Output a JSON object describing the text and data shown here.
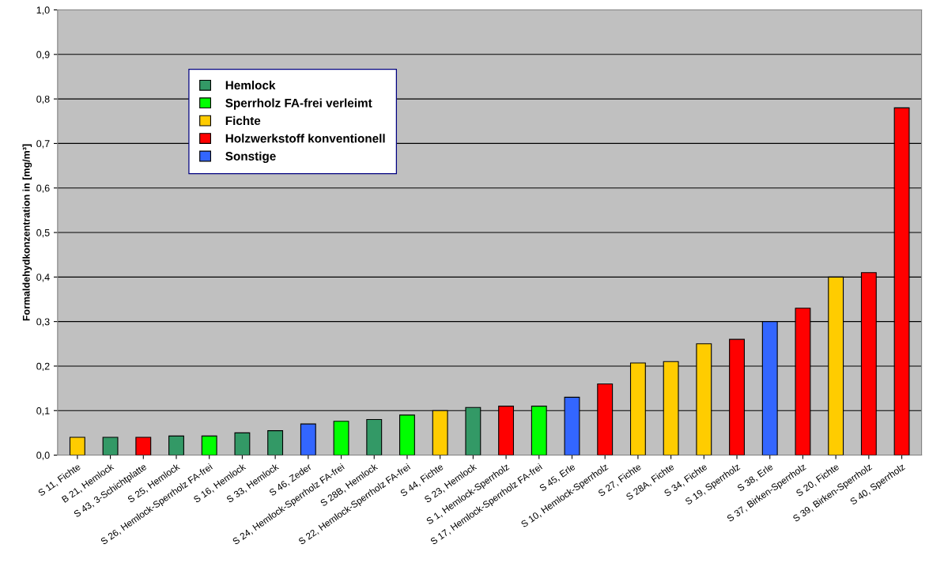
{
  "chart_data": {
    "type": "bar",
    "ylabel": "Formaldehydkonzentration in [mg/m³]",
    "categories": [
      "S 11, Fichte",
      "B 21, Hemlock",
      "S 43, 3-Schichtplatte",
      "S 25, Hemlock",
      "S 26, Hemlock-Sperrholz FA-frei",
      "S 16, Hemlock",
      "S 33, Hemlock",
      "S 46, Zeder",
      "S 24, Hemlock-Sperrholz FA-frei",
      "S 28B, Hemlock",
      "S 22, Hemlock-Sperrholz FA-frei",
      "S 44, Fichte",
      "S 23, Hemlock",
      "S 1, Hemlock-Sperrholz",
      "S 17, Hemlock-Sperrholz FA-frei",
      "S 45, Erle",
      "S 10, Hemlock-Sperrholz",
      "S 27, Fichte",
      "S 28A, Fichte",
      "S 34, Fichte",
      "S 19, Sperrholz",
      "S 38, Erle",
      "S 37, Birken-Sperrholz",
      "S 20, Fichte",
      "S 39, Birken-Sperrholz",
      "S 40, Sperrholz"
    ],
    "series": [
      {
        "name": "Hemlock",
        "color": "#339966",
        "values": [
          null,
          0.04,
          null,
          0.043,
          null,
          0.05,
          0.055,
          null,
          null,
          0.08,
          null,
          null,
          0.107,
          null,
          null,
          null,
          null,
          null,
          null,
          null,
          null,
          null,
          null,
          null,
          null,
          null
        ]
      },
      {
        "name": "Sperrholz FA-frei verleimt",
        "color": "#00ff00",
        "values": [
          null,
          null,
          null,
          null,
          0.043,
          null,
          null,
          null,
          0.076,
          null,
          0.09,
          null,
          null,
          null,
          0.11,
          null,
          null,
          null,
          null,
          null,
          null,
          null,
          null,
          null,
          null,
          null
        ]
      },
      {
        "name": "Fichte",
        "color": "#ffcc00",
        "values": [
          0.04,
          null,
          null,
          null,
          null,
          null,
          null,
          null,
          null,
          null,
          null,
          0.1,
          null,
          null,
          null,
          null,
          null,
          0.207,
          0.21,
          0.25,
          null,
          null,
          null,
          0.4,
          null,
          null
        ]
      },
      {
        "name": "Holzwerkstoff konventionell",
        "color": "#ff0000",
        "values": [
          null,
          null,
          0.04,
          null,
          null,
          null,
          null,
          null,
          null,
          null,
          null,
          null,
          null,
          0.11,
          null,
          null,
          0.16,
          null,
          null,
          null,
          0.26,
          null,
          0.33,
          null,
          0.41,
          0.78
        ]
      },
      {
        "name": "Sonstige",
        "color": "#3366ff",
        "values": [
          null,
          null,
          null,
          null,
          null,
          null,
          null,
          0.07,
          null,
          null,
          null,
          null,
          null,
          null,
          null,
          0.13,
          null,
          null,
          null,
          null,
          null,
          0.3,
          null,
          null,
          null,
          null
        ]
      }
    ],
    "ylim": [
      0,
      1.0
    ],
    "yticks": [
      {
        "value": 0,
        "label": "0,0"
      },
      {
        "value": 0.1,
        "label": "0,1"
      },
      {
        "value": 0.2,
        "label": "0,2"
      },
      {
        "value": 0.3,
        "label": "0,3"
      },
      {
        "value": 0.4,
        "label": "0,4"
      },
      {
        "value": 0.5,
        "label": "0,5"
      },
      {
        "value": 0.6,
        "label": "0,6"
      },
      {
        "value": 0.7,
        "label": "0,7"
      },
      {
        "value": 0.8,
        "label": "0,8"
      },
      {
        "value": 0.9,
        "label": "0,9"
      },
      {
        "value": 1.0,
        "label": "1,0"
      }
    ],
    "grid": "y",
    "legend": "top left"
  }
}
